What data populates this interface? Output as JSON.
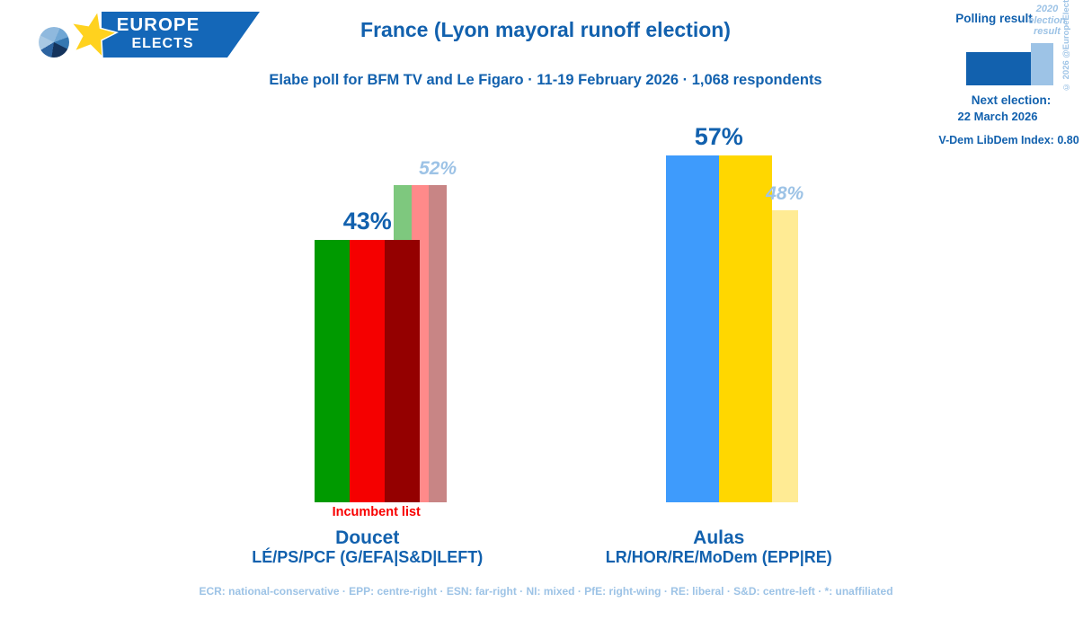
{
  "brand": {
    "name_line1": "EUROPE",
    "name_line2": "ELECTS",
    "banner_color": "#1467B8",
    "star_color": "#FFD21E"
  },
  "header": {
    "title": "France (Lyon mayoral runoff election)",
    "subtitle": "Elabe poll for BFM TV and Le Figaro · 11-19 February 2026 · 1,068 respondents"
  },
  "legend": {
    "polling_label": "Polling result",
    "previous_label": "2020 election result",
    "copyright": "© 2026 @EuropeElects",
    "next_election_label": "Next election:",
    "next_election_date": "22 March 2026",
    "vdem_label": "V-Dem LibDem Index: 0.80",
    "polling_color": "#1261AE",
    "previous_color": "#9DC3E6"
  },
  "chart_data": {
    "type": "bar",
    "title": "France (Lyon mayoral runoff election)",
    "subtitle": "Elabe poll for BFM TV and Le Figaro · 11-19 February 2026 · 1,068 respondents",
    "unit": "%",
    "ylim": [
      0,
      60
    ],
    "grid": false,
    "legend_entries": [
      "Polling result",
      "2020 election result"
    ],
    "legend_position": "top-right",
    "categories": [
      "Doucet",
      "Aulas"
    ],
    "series": [
      {
        "name": "Polling result",
        "values": [
          43,
          57
        ]
      },
      {
        "name": "2020 election result",
        "values": [
          52,
          48
        ]
      }
    ],
    "groups": [
      {
        "candidate": "Doucet",
        "parties": "LÉ/PS/PCF (G/EFA|S&D|LEFT)",
        "note": "Incumbent list",
        "polling_pct": 43,
        "result_2020_pct": 52,
        "polling_colors": [
          "#009A00",
          "#F50000",
          "#940000"
        ],
        "result_colors": [
          "#7EC87E",
          "#FF8A8A",
          "#C88585"
        ]
      },
      {
        "candidate": "Aulas",
        "parties": "LR/HOR/RE/MoDem (EPP|RE)",
        "note": "",
        "polling_pct": 57,
        "result_2020_pct": 48,
        "polling_colors": [
          "#3E9BFC",
          "#FFD700"
        ],
        "result_colors": [
          "#A9CBEF",
          "#FFEB94"
        ]
      }
    ]
  },
  "footer": {
    "abbreviations": "ECR: national-conservative · EPP: centre-right · ESN: far-right · NI: mixed · PfE: right-wing · RE: liberal · S&D: centre-left · *: unaffiliated"
  }
}
